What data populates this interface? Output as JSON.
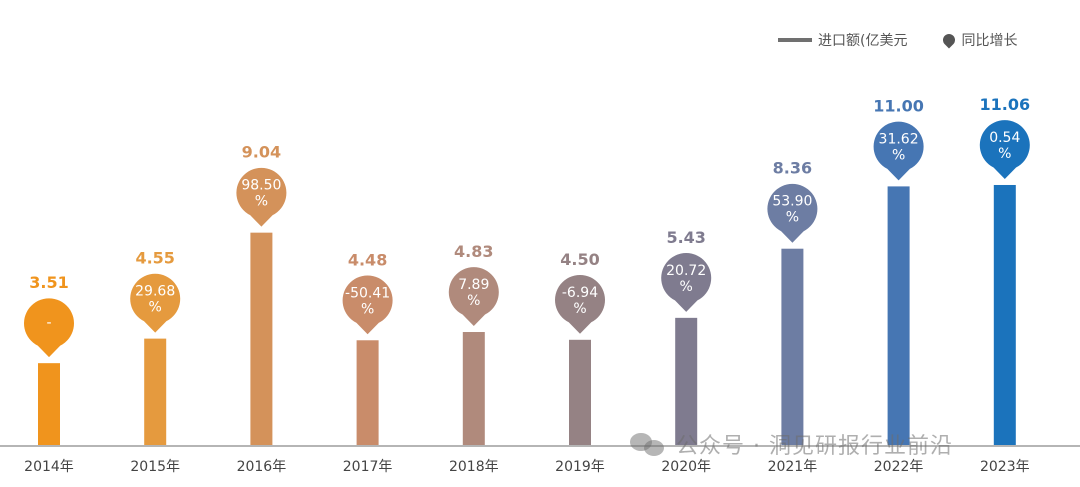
{
  "chart_data": {
    "type": "bar",
    "categories": [
      "2014年",
      "2015年",
      "2016年",
      "2017年",
      "2018年",
      "2019年",
      "2020年",
      "2021年",
      "2022年",
      "2023年"
    ],
    "series": [
      {
        "name": "进口额(亿美元",
        "values": [
          3.51,
          4.55,
          9.04,
          4.48,
          4.83,
          4.5,
          5.43,
          8.36,
          11.0,
          11.06
        ]
      },
      {
        "name": "同比增长",
        "values": [
          null,
          29.68,
          98.5,
          -50.41,
          7.89,
          -6.94,
          20.72,
          53.9,
          31.62,
          0.54
        ]
      }
    ],
    "value_labels": [
      "3.51",
      "4.55",
      "9.04",
      "4.48",
      "4.83",
      "4.50",
      "5.43",
      "8.36",
      "11.00",
      "11.06"
    ],
    "growth_labels": [
      "-",
      "29.68",
      "98.50",
      "-50.41",
      "7.89",
      "-6.94",
      "20.72",
      "53.90",
      "31.62",
      "0.54"
    ],
    "growth_unit": "%",
    "colors": [
      "#f0941d",
      "#e59a3e",
      "#d4925a",
      "#c98c6a",
      "#b08a7c",
      "#958284",
      "#7f7b8f",
      "#6d7da3",
      "#4676b3",
      "#1b73bc"
    ],
    "legend_position": "top-right",
    "grid": false
  },
  "legend": {
    "bar_label": "进口额(亿美元",
    "pin_label": "同比增长"
  },
  "watermark": {
    "text": "公众号 · 洞见研报行业前沿"
  }
}
